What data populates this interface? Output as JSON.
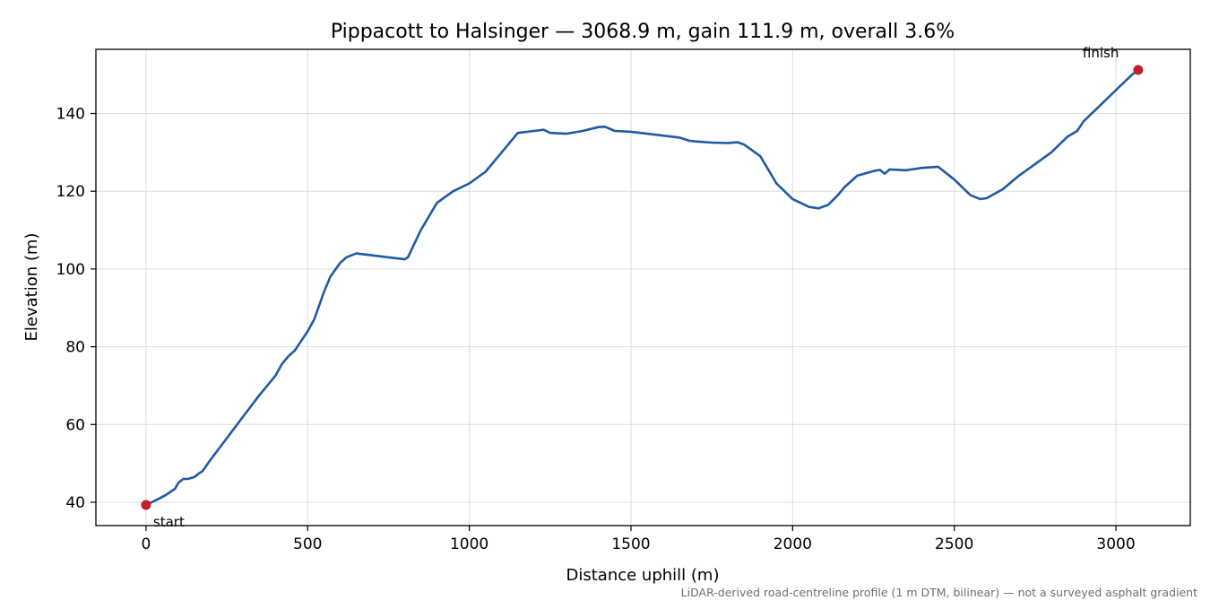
{
  "chart_data": {
    "type": "line",
    "title": "Pippacott to Halsinger — 3068.9 m, gain 111.9 m, overall 3.6%",
    "xlabel": "Distance uphill (m)",
    "ylabel": "Elevation (m)",
    "xlim": [
      -155,
      3230
    ],
    "ylim": [
      34,
      156.5
    ],
    "xticks": [
      0,
      500,
      1000,
      1500,
      2000,
      2500,
      3000
    ],
    "yticks": [
      40,
      60,
      80,
      100,
      120,
      140
    ],
    "grid": true,
    "line_color": "#1f5aa6",
    "marker_color": "#c0202a",
    "footnote": "LiDAR-derived road-centreline profile (1 m DTM, bilinear) — not a surveyed asphalt gradient",
    "series": [
      {
        "x": [
          0,
          30,
          60,
          90,
          100,
          115,
          130,
          150,
          165,
          175,
          200,
          250,
          300,
          350,
          400,
          420,
          440,
          460,
          500,
          520,
          550,
          570,
          600,
          620,
          650,
          700,
          750,
          800,
          810,
          850,
          900,
          950,
          1000,
          1050,
          1100,
          1150,
          1200,
          1230,
          1250,
          1300,
          1350,
          1400,
          1420,
          1450,
          1500,
          1550,
          1600,
          1650,
          1680,
          1700,
          1750,
          1800,
          1830,
          1850,
          1900,
          1950,
          2000,
          2050,
          2080,
          2110,
          2140,
          2160,
          2200,
          2250,
          2270,
          2285,
          2300,
          2350,
          2400,
          2450,
          2500,
          2550,
          2580,
          2600,
          2650,
          2700,
          2750,
          2800,
          2850,
          2880,
          2900,
          2950,
          3000,
          3050,
          3068.9
        ],
        "y": [
          39.3,
          40.5,
          41.8,
          43.5,
          45,
          46,
          46,
          46.5,
          47.5,
          48,
          51,
          56.5,
          62,
          67.5,
          72.5,
          75.5,
          77.5,
          79,
          84,
          87,
          94,
          98,
          101.5,
          103,
          104,
          103.5,
          103,
          102.5,
          103,
          110,
          117,
          120,
          122,
          125,
          130,
          135,
          135.5,
          135.8,
          135,
          134.8,
          135.5,
          136.5,
          136.6,
          135.5,
          135.3,
          134.8,
          134.3,
          133.8,
          133,
          132.8,
          132.5,
          132.4,
          132.6,
          132,
          129,
          122,
          118,
          116,
          115.6,
          116.5,
          119,
          121,
          124,
          125.2,
          125.5,
          124.5,
          125.6,
          125.4,
          126,
          126.3,
          123,
          119,
          118,
          118.2,
          120.5,
          124,
          127,
          130,
          134,
          135.5,
          138,
          142,
          146,
          150,
          151.2
        ]
      }
    ],
    "annotations": [
      {
        "label": "start",
        "x": 0,
        "y": 39.3
      },
      {
        "label": "finish",
        "x": 3068.9,
        "y": 151.2
      }
    ]
  }
}
